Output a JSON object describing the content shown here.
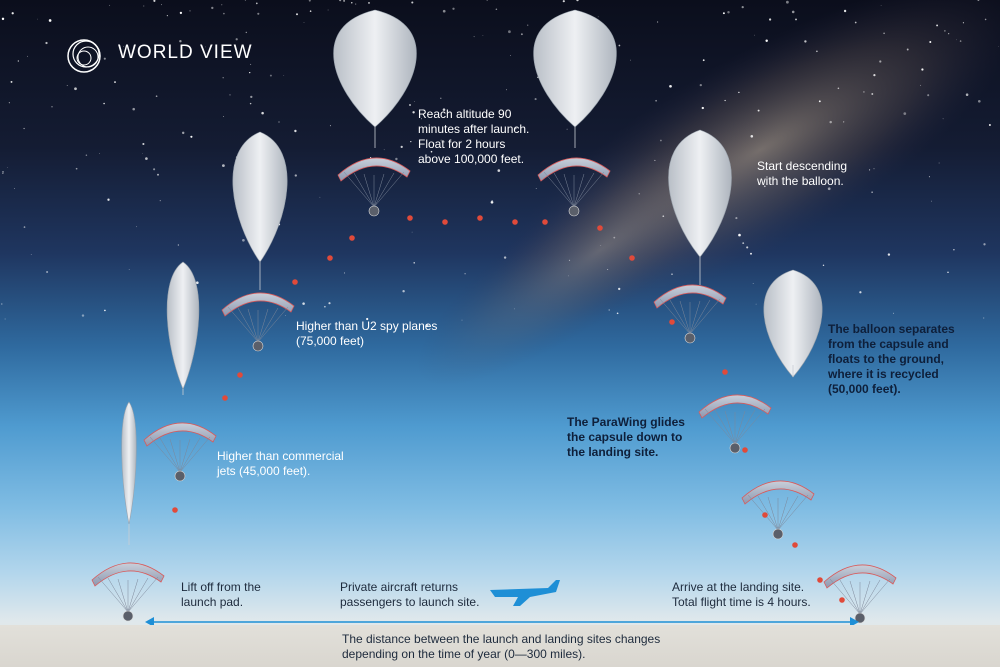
{
  "brand": {
    "name": "WORLD VIEW",
    "logo_icon": "swirl-ring-logo"
  },
  "colors": {
    "dot": "#e04a3a",
    "arrow": "#1e8fd6",
    "aircraft": "#1e8fd6",
    "balloon": "#d8dde4",
    "parawing": "#a8b3c7"
  },
  "stages": [
    {
      "id": "liftoff",
      "text": "Lift off from the\nlaunch pad."
    },
    {
      "id": "commercial-jets",
      "text": "Higher than commercial\njets (45,000 feet)."
    },
    {
      "id": "u2",
      "text": "Higher than U2 spy planes\n(75,000 feet)"
    },
    {
      "id": "float",
      "text": "Reach altitude 90\nminutes after launch.\nFloat for 2 hours\nabove 100,000 feet."
    },
    {
      "id": "descend",
      "text": "Start descending\nwith the balloon."
    },
    {
      "id": "separate",
      "text": "The balloon separates\nfrom the capsule and\nfloats to the ground,\nwhere it is recycled\n(50,000 feet)."
    },
    {
      "id": "parawing",
      "text": "The ParaWing glides\nthe capsule down to\nthe landing site."
    },
    {
      "id": "landing",
      "text": "Arrive at the landing site.\nTotal flight time is 4 hours."
    },
    {
      "id": "aircraft",
      "text": "Private aircraft returns\npassengers to launch site."
    }
  ],
  "distance_note": "The distance between the launch and landing sites changes\ndepending on the time of year (0—300 miles)."
}
